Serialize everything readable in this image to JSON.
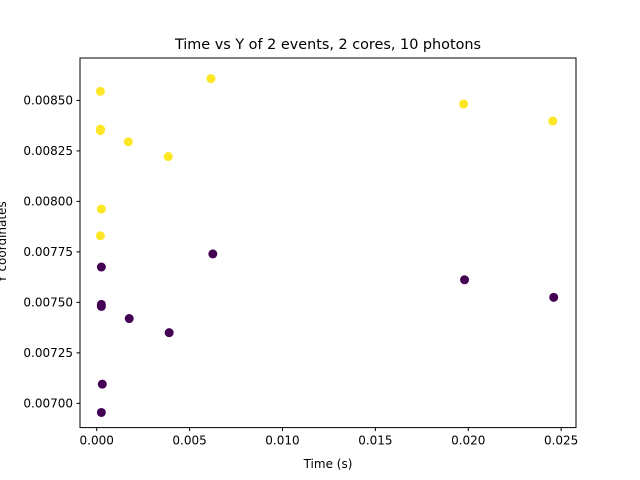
{
  "chart_data": {
    "type": "scatter",
    "title": "Time vs Y of 2 events, 2 cores, 10 photons",
    "xlabel": "Time (s)",
    "ylabel": "Y coordinates",
    "xlim": [
      -0.0009,
      0.0258
    ],
    "ylim": [
      0.00688,
      0.00871
    ],
    "xticks": [
      {
        "value": 0.0,
        "label": "0.000"
      },
      {
        "value": 0.005,
        "label": "0.005"
      },
      {
        "value": 0.01,
        "label": "0.010"
      },
      {
        "value": 0.015,
        "label": "0.015"
      },
      {
        "value": 0.02,
        "label": "0.020"
      },
      {
        "value": 0.025,
        "label": "0.025"
      }
    ],
    "yticks": [
      {
        "value": 0.007,
        "label": "0.00700"
      },
      {
        "value": 0.00725,
        "label": "0.00725"
      },
      {
        "value": 0.0075,
        "label": "0.00750"
      },
      {
        "value": 0.00775,
        "label": "0.00775"
      },
      {
        "value": 0.008,
        "label": "0.00800"
      },
      {
        "value": 0.00825,
        "label": "0.00825"
      },
      {
        "value": 0.0085,
        "label": "0.00850"
      }
    ],
    "grid": false,
    "legend": null,
    "series": [
      {
        "color": "#440154",
        "points": [
          {
            "x": 0.00025,
            "y": 0.007675
          },
          {
            "x": 0.00025,
            "y": 0.00749
          },
          {
            "x": 0.00025,
            "y": 0.00748
          },
          {
            "x": 0.0003,
            "y": 0.007095
          },
          {
            "x": 0.00025,
            "y": 0.006955
          },
          {
            "x": 0.00175,
            "y": 0.00742
          },
          {
            "x": 0.0039,
            "y": 0.00735
          },
          {
            "x": 0.00625,
            "y": 0.00774
          },
          {
            "x": 0.0198,
            "y": 0.007612
          },
          {
            "x": 0.0246,
            "y": 0.007525
          }
        ]
      },
      {
        "color": "#fde725",
        "points": [
          {
            "x": 0.0002,
            "y": 0.008545
          },
          {
            "x": 0.0002,
            "y": 0.008358
          },
          {
            "x": 0.0002,
            "y": 0.00835
          },
          {
            "x": 0.00025,
            "y": 0.007962
          },
          {
            "x": 0.0002,
            "y": 0.00783
          },
          {
            "x": 0.0017,
            "y": 0.008295
          },
          {
            "x": 0.00385,
            "y": 0.008222
          },
          {
            "x": 0.00615,
            "y": 0.008608
          },
          {
            "x": 0.01975,
            "y": 0.008482
          },
          {
            "x": 0.02455,
            "y": 0.008398
          }
        ]
      }
    ]
  }
}
